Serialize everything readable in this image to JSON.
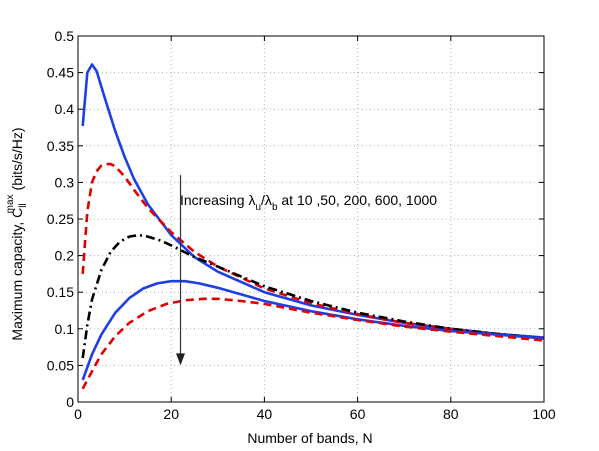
{
  "chart_data": {
    "type": "line",
    "xlabel": "Number of bands, N",
    "ylabel": {
      "main": "Maximum capacity, C",
      "subscript": "ll",
      "superscript": "max",
      "unit": "(bits/s/Hz)"
    },
    "xlim": [
      0,
      100
    ],
    "ylim": [
      0,
      0.5
    ],
    "xticks": [
      0,
      20,
      40,
      60,
      80,
      100
    ],
    "yticks": [
      0,
      0.05,
      0.1,
      0.15,
      0.2,
      0.25,
      0.3,
      0.35,
      0.4,
      0.45,
      0.5
    ],
    "grid": true,
    "grid_style": "dotted",
    "annotation": {
      "parts": [
        {
          "text": "Increasing λ"
        },
        {
          "text": "u",
          "sub": true
        },
        {
          "text": "/λ"
        },
        {
          "text": "b",
          "sub": true
        },
        {
          "text": " at 10 ,50, 200, 600, 1000"
        }
      ],
      "arrow": {
        "x": 22,
        "y_from": 0.31,
        "y_to": 0.05
      }
    },
    "series": [
      {
        "color": "#1f3fe6",
        "style": "solid",
        "x": [
          1,
          2,
          3,
          4,
          6,
          8,
          10,
          12,
          15,
          20,
          25,
          30,
          40,
          50,
          60,
          70,
          80,
          90,
          100
        ],
        "y": [
          0.377,
          0.45,
          0.461,
          0.452,
          0.41,
          0.37,
          0.335,
          0.305,
          0.27,
          0.228,
          0.198,
          0.178,
          0.15,
          0.132,
          0.119,
          0.108,
          0.1,
          0.093,
          0.088
        ]
      },
      {
        "color": "#e00000",
        "style": "dashed",
        "x": [
          1,
          2,
          3,
          4,
          5,
          6,
          7,
          8,
          10,
          12,
          15,
          20,
          25,
          30,
          40,
          50,
          60,
          70,
          80,
          90,
          100
        ],
        "y": [
          0.175,
          0.26,
          0.3,
          0.315,
          0.323,
          0.325,
          0.325,
          0.322,
          0.308,
          0.29,
          0.265,
          0.232,
          0.205,
          0.185,
          0.155,
          0.135,
          0.12,
          0.108,
          0.1,
          0.092,
          0.086
        ]
      },
      {
        "color": "#000000",
        "style": "dashdot",
        "x": [
          1,
          2,
          3,
          5,
          7,
          9,
          11,
          13,
          15,
          18,
          20,
          25,
          30,
          40,
          50,
          60,
          70,
          80,
          90,
          100
        ],
        "y": [
          0.06,
          0.105,
          0.14,
          0.18,
          0.205,
          0.219,
          0.226,
          0.228,
          0.226,
          0.22,
          0.214,
          0.198,
          0.185,
          0.158,
          0.138,
          0.122,
          0.11,
          0.1,
          0.093,
          0.087
        ]
      },
      {
        "color": "#1f3fe6",
        "style": "solid",
        "x": [
          1,
          3,
          5,
          8,
          11,
          14,
          17,
          20,
          23,
          26,
          30,
          35,
          40,
          50,
          60,
          70,
          80,
          90,
          100
        ],
        "y": [
          0.03,
          0.065,
          0.092,
          0.122,
          0.142,
          0.155,
          0.162,
          0.165,
          0.165,
          0.162,
          0.156,
          0.147,
          0.138,
          0.124,
          0.113,
          0.104,
          0.097,
          0.092,
          0.087
        ]
      },
      {
        "color": "#e00000",
        "style": "dashed",
        "x": [
          1,
          3,
          5,
          8,
          11,
          15,
          19,
          23,
          27,
          30,
          35,
          40,
          50,
          60,
          70,
          80,
          90,
          100
        ],
        "y": [
          0.018,
          0.042,
          0.065,
          0.09,
          0.108,
          0.124,
          0.134,
          0.139,
          0.141,
          0.141,
          0.138,
          0.134,
          0.122,
          0.112,
          0.103,
          0.096,
          0.09,
          0.084
        ]
      }
    ]
  }
}
